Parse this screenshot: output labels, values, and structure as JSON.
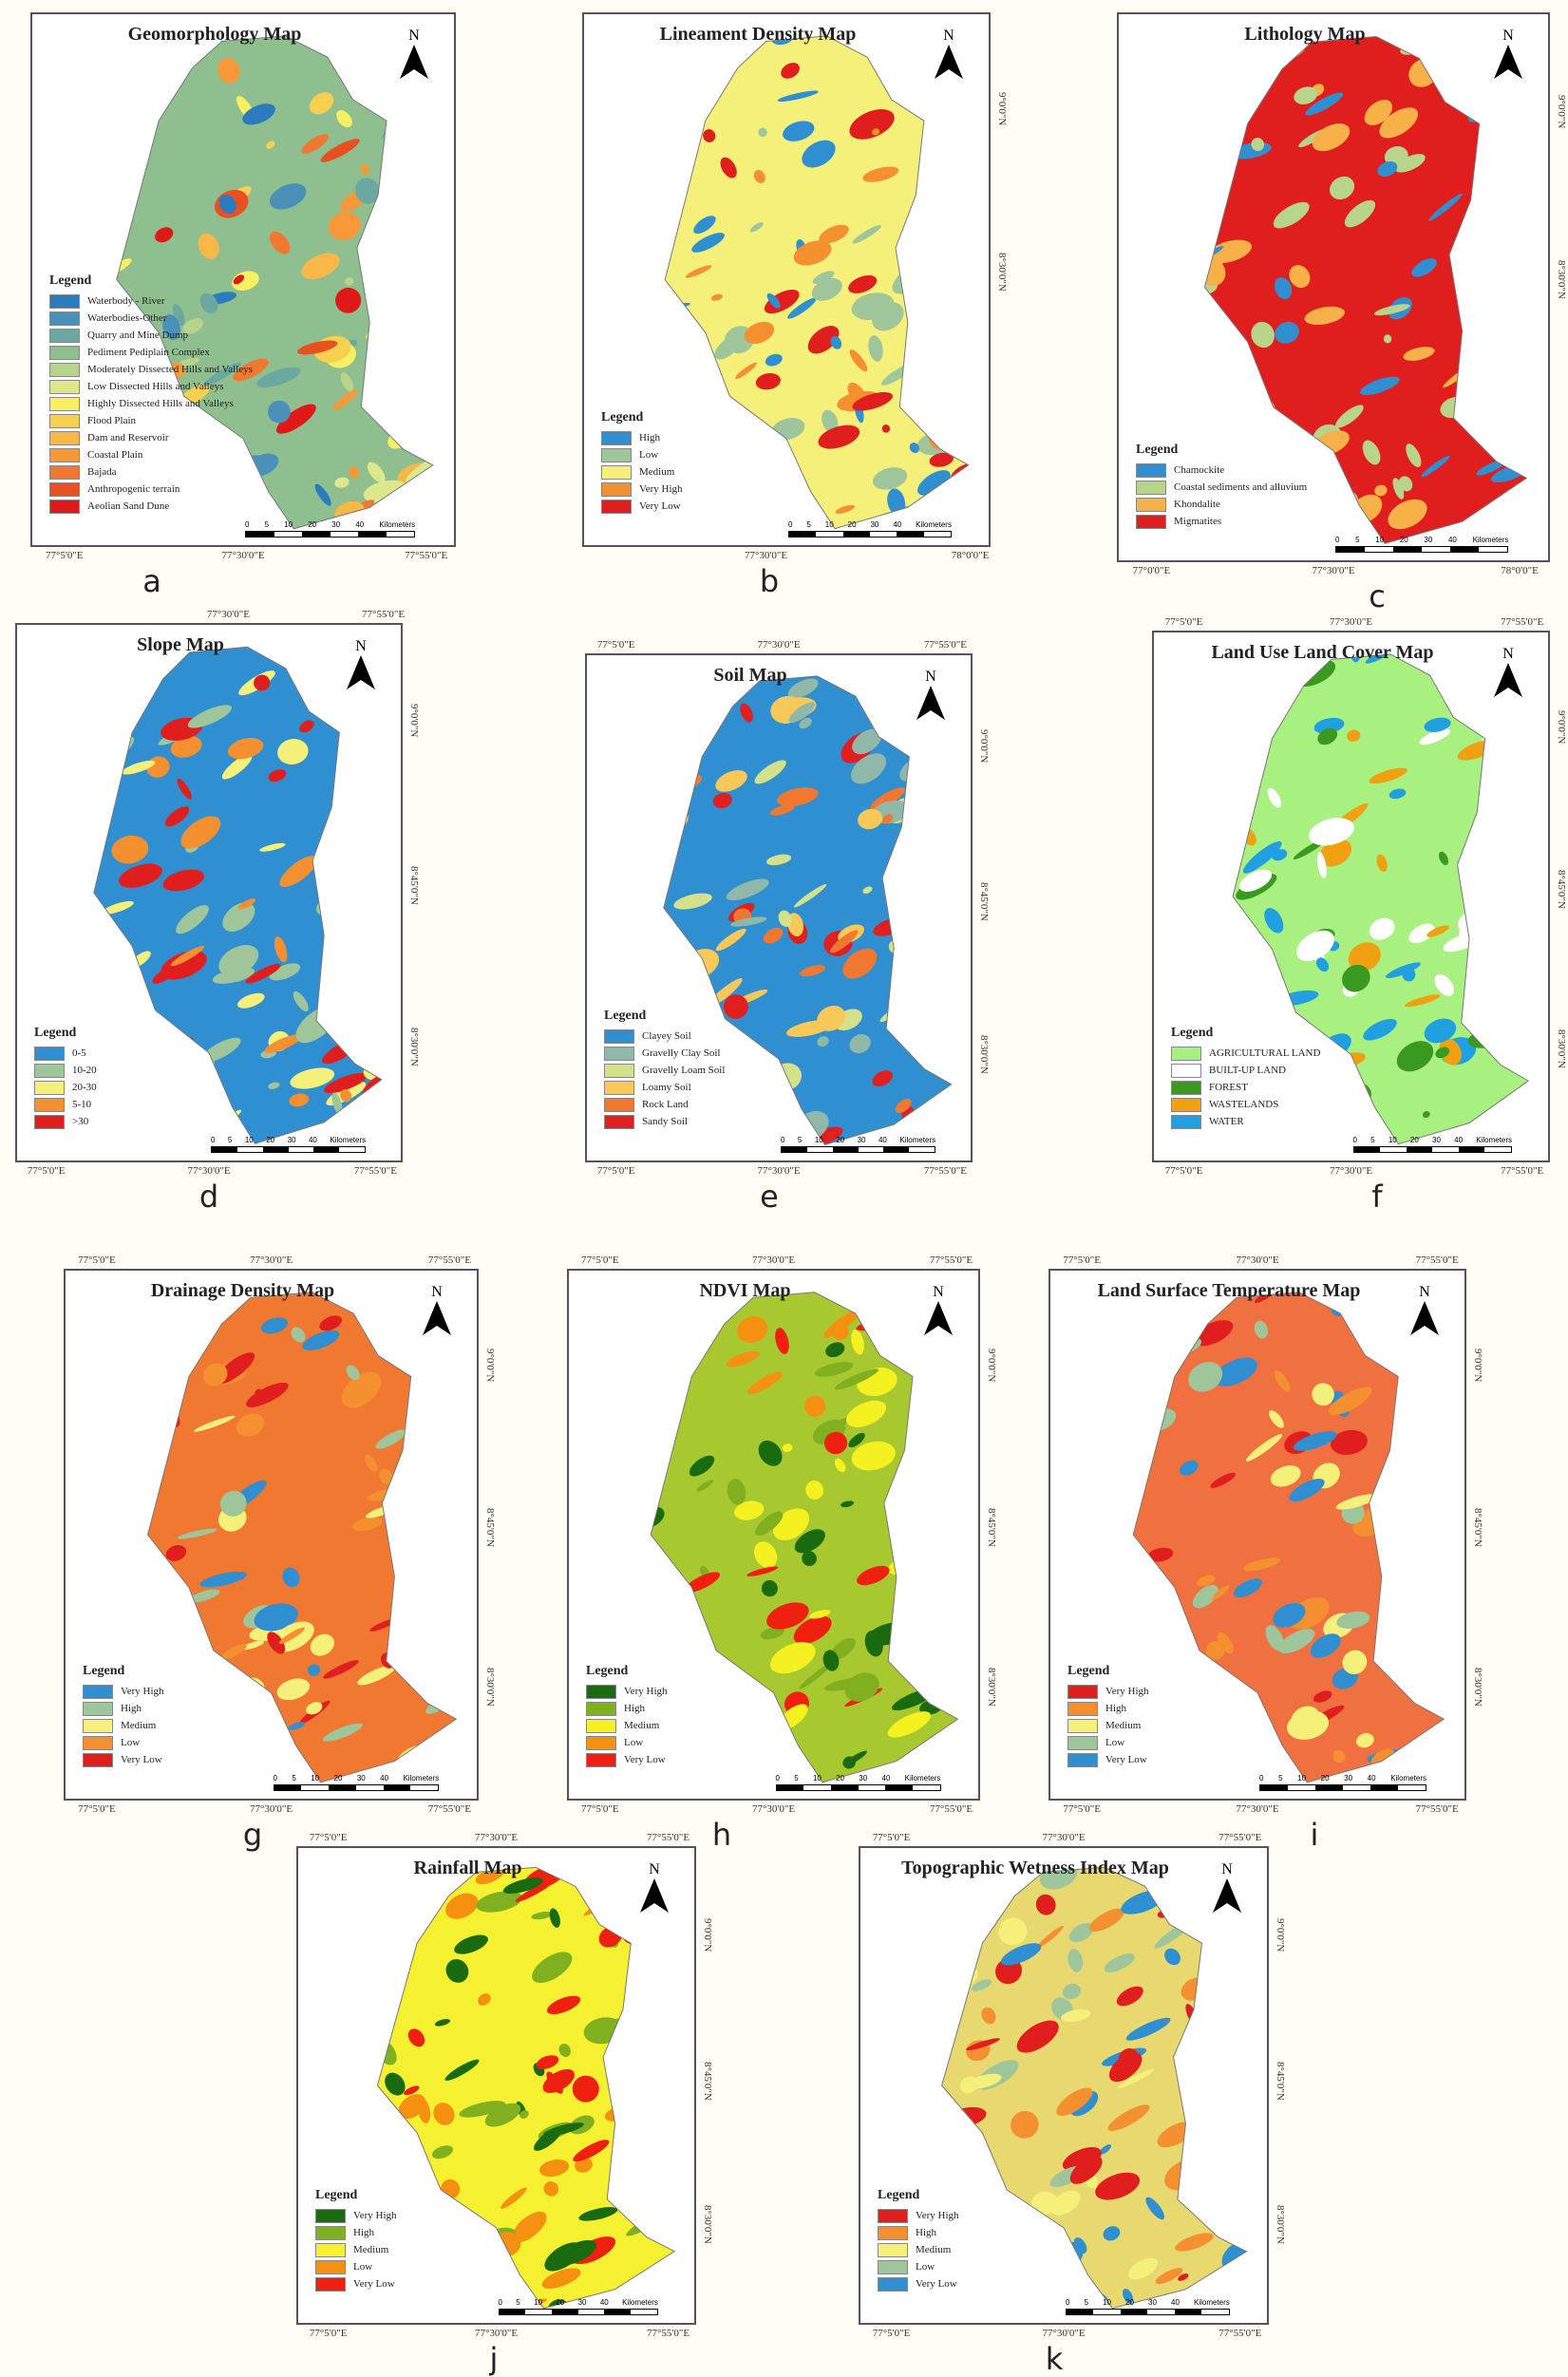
{
  "legend_heading": "Legend",
  "north_label": "N",
  "scale": {
    "ticks": [
      "0",
      "5",
      "10",
      "20",
      "30",
      "40"
    ],
    "unit": "Kilometers"
  },
  "panels": [
    {
      "caption": "a",
      "title": "Geomorphology Map",
      "base": "#8fbf8f",
      "lon_bottom": [
        "77°5'0\"E",
        "77°30'0\"E",
        "77°55'0\"E"
      ],
      "lon_top": [],
      "lat": [],
      "legend": [
        {
          "label": "Waterbody - River",
          "color": "#2b7bbf"
        },
        {
          "label": "Waterbodies-Other",
          "color": "#4a90b8"
        },
        {
          "label": "Quarry and Mine Dump",
          "color": "#6aa8a0"
        },
        {
          "label": "Pediment Pediplain Complex",
          "color": "#8fbf8f"
        },
        {
          "label": "Moderately Dissected Hills and Valleys",
          "color": "#b8d48a"
        },
        {
          "label": "Low Dissected Hills and Valleys",
          "color": "#dde88a"
        },
        {
          "label": "Highly Dissected Hills and Valleys",
          "color": "#f8f060"
        },
        {
          "label": "Flood Plain",
          "color": "#f8d050"
        },
        {
          "label": "Dam and Reservoir",
          "color": "#f8b848"
        },
        {
          "label": "Coastal Plain",
          "color": "#f89838"
        },
        {
          "label": "Bajada",
          "color": "#f07830"
        },
        {
          "label": "Anthropogenic terrain",
          "color": "#e85020"
        },
        {
          "label": "Aeolian Sand Dune",
          "color": "#e01818"
        }
      ]
    },
    {
      "caption": "b",
      "title": "Lineament Density Map",
      "base": "#f5f07a",
      "lon_bottom": [
        "77°30'0\"E",
        "78°0'0\"E"
      ],
      "lon_top": [],
      "lat": [
        "9°0'0\"N",
        "8°30'0\"N"
      ],
      "legend": [
        {
          "label": "High",
          "color": "#2f8fd0"
        },
        {
          "label": "Low",
          "color": "#9fc59a"
        },
        {
          "label": "Medium",
          "color": "#f5f07a"
        },
        {
          "label": "Very High",
          "color": "#f59030"
        },
        {
          "label": "Very Low",
          "color": "#e01e1e"
        }
      ]
    },
    {
      "caption": "c",
      "title": "Lithology Map",
      "base": "#e01e1e",
      "lon_bottom": [
        "77°0'0\"E",
        "77°30'0\"E",
        "78°0'0\"E"
      ],
      "lon_top": [],
      "lat": [
        "9°0'0\"N",
        "8°30'0\"N"
      ],
      "legend": [
        {
          "label": "Chamockite",
          "color": "#2f8fd0"
        },
        {
          "label": "Coastal sediments and alluvium",
          "color": "#b8d48a"
        },
        {
          "label": "Khondalite",
          "color": "#f8b048"
        },
        {
          "label": "Migmatites",
          "color": "#e01e1e"
        }
      ]
    },
    {
      "caption": "d",
      "title": "Slope Map",
      "base": "#2f8fd0",
      "lon_bottom": [
        "77°5'0\"E",
        "77°30'0\"E",
        "77°55'0\"E"
      ],
      "lon_top": [
        "77°30'0\"E",
        "77°55'0\"E"
      ],
      "lat": [
        "9°0'0\"N",
        "8°45'0\"N",
        "8°30'0\"N"
      ],
      "legend": [
        {
          "label": "0-5",
          "color": "#2f8fd0"
        },
        {
          "label": "10-20",
          "color": "#9fc59a"
        },
        {
          "label": "20-30",
          "color": "#f5f07a"
        },
        {
          "label": "5-10",
          "color": "#f59030"
        },
        {
          "label": ">30",
          "color": "#e01e1e"
        }
      ]
    },
    {
      "caption": "e",
      "title": "Soil Map",
      "base": "#2f8fd0",
      "lon_bottom": [
        "77°5'0\"E",
        "77°30'0\"E",
        "77°55'0\"E"
      ],
      "lon_top": [
        "77°5'0\"E",
        "77°30'0\"E",
        "77°55'0\"E"
      ],
      "lat": [
        "9°0'0\"N",
        "8°45'0\"N",
        "8°30'0\"N"
      ],
      "legend": [
        {
          "label": "Clayey Soil",
          "color": "#2f8fd0"
        },
        {
          "label": "Gravelly Clay Soil",
          "color": "#8fb8a8"
        },
        {
          "label": "Gravelly Loam Soil",
          "color": "#d5e08a"
        },
        {
          "label": "Loamy Soil",
          "color": "#f8c858"
        },
        {
          "label": "Rock Land",
          "color": "#f07830"
        },
        {
          "label": "Sandy Soil",
          "color": "#e02020"
        }
      ]
    },
    {
      "caption": "f",
      "title": "Land Use Land Cover Map",
      "base": "#a8f080",
      "lon_bottom": [
        "77°5'0\"E",
        "77°30'0\"E",
        "77°55'0\"E"
      ],
      "lon_top": [
        "77°5'0\"E",
        "77°30'0\"E",
        "77°55'0\"E"
      ],
      "lat": [
        "9°0'0\"N",
        "8°45'0\"N",
        "8°30'0\"N"
      ],
      "legend": [
        {
          "label": "AGRICULTURAL LAND",
          "color": "#a8f080"
        },
        {
          "label": "BUILT-UP LAND",
          "color": "#ffffff"
        },
        {
          "label": "FOREST",
          "color": "#3a9a20"
        },
        {
          "label": "WASTELANDS",
          "color": "#f0a010"
        },
        {
          "label": "WATER",
          "color": "#20a0e0"
        }
      ]
    },
    {
      "caption": "g",
      "title": "Drainage Density Map",
      "base": "#f07830",
      "lon_bottom": [
        "77°5'0\"E",
        "77°30'0\"E",
        "77°55'0\"E"
      ],
      "lon_top": [
        "77°5'0\"E",
        "77°30'0\"E",
        "77°55'0\"E"
      ],
      "lat": [
        "9°0'0\"N",
        "8°45'0\"N",
        "8°30'0\"N"
      ],
      "legend": [
        {
          "label": "Very High",
          "color": "#2f8fd0"
        },
        {
          "label": "High",
          "color": "#9fc59a"
        },
        {
          "label": "Medium",
          "color": "#f5f07a"
        },
        {
          "label": "Low",
          "color": "#f59030"
        },
        {
          "label": "Very Low",
          "color": "#e01e1e"
        }
      ]
    },
    {
      "caption": "h",
      "title": "NDVI Map",
      "base": "#a8c830",
      "lon_bottom": [
        "77°5'0\"E",
        "77°30'0\"E",
        "77°55'0\"E"
      ],
      "lon_top": [
        "77°5'0\"E",
        "77°30'0\"E",
        "77°55'0\"E"
      ],
      "lat": [
        "9°0'0\"N",
        "8°45'0\"N",
        "8°30'0\"N"
      ],
      "legend": [
        {
          "label": "Very High",
          "color": "#1a6a10"
        },
        {
          "label": "High",
          "color": "#80b020"
        },
        {
          "label": "Medium",
          "color": "#f5f020"
        },
        {
          "label": "Low",
          "color": "#f59010"
        },
        {
          "label": "Very Low",
          "color": "#f02010"
        }
      ]
    },
    {
      "caption": "i",
      "title": "Land Surface Temperature Map",
      "base": "#f07040",
      "lon_bottom": [
        "77°5'0\"E",
        "77°30'0\"E",
        "77°55'0\"E"
      ],
      "lon_top": [
        "77°5'0\"E",
        "77°30'0\"E",
        "77°55'0\"E"
      ],
      "lat": [
        "9°0'0\"N",
        "8°45'0\"N",
        "8°30'0\"N"
      ],
      "legend": [
        {
          "label": "Very High",
          "color": "#e01e1e"
        },
        {
          "label": "High",
          "color": "#f59030"
        },
        {
          "label": "Medium",
          "color": "#f5f07a"
        },
        {
          "label": "Low",
          "color": "#9fc59a"
        },
        {
          "label": "Very Low",
          "color": "#2f8fd0"
        }
      ]
    },
    {
      "caption": "j",
      "title": "Rainfall Map",
      "base": "#f5f030",
      "lon_bottom": [
        "77°5'0\"E",
        "77°30'0\"E",
        "77°55'0\"E"
      ],
      "lon_top": [
        "77°5'0\"E",
        "77°30'0\"E",
        "77°55'0\"E"
      ],
      "lat": [
        "9°0'0\"N",
        "8°45'0\"N",
        "8°30'0\"N"
      ],
      "legend": [
        {
          "label": "Very High",
          "color": "#1a6a10"
        },
        {
          "label": "High",
          "color": "#80b020"
        },
        {
          "label": "Medium",
          "color": "#f5f030"
        },
        {
          "label": "Low",
          "color": "#f59010"
        },
        {
          "label": "Very Low",
          "color": "#f02010"
        }
      ]
    },
    {
      "caption": "k",
      "title": "Topographic Wetness Index Map",
      "base": "#e8d870",
      "lon_bottom": [
        "77°5'0\"E",
        "77°30'0\"E",
        "77°55'0\"E"
      ],
      "lon_top": [
        "77°5'0\"E",
        "77°30'0\"E",
        "77°55'0\"E"
      ],
      "lat": [
        "9°0'0\"N",
        "8°45'0\"N",
        "8°30'0\"N"
      ],
      "legend": [
        {
          "label": "Very High",
          "color": "#e01e1e"
        },
        {
          "label": "High",
          "color": "#f59030"
        },
        {
          "label": "Medium",
          "color": "#f5f07a"
        },
        {
          "label": "Low",
          "color": "#9fc59a"
        },
        {
          "label": "Very Low",
          "color": "#2f8fd0"
        }
      ]
    }
  ]
}
